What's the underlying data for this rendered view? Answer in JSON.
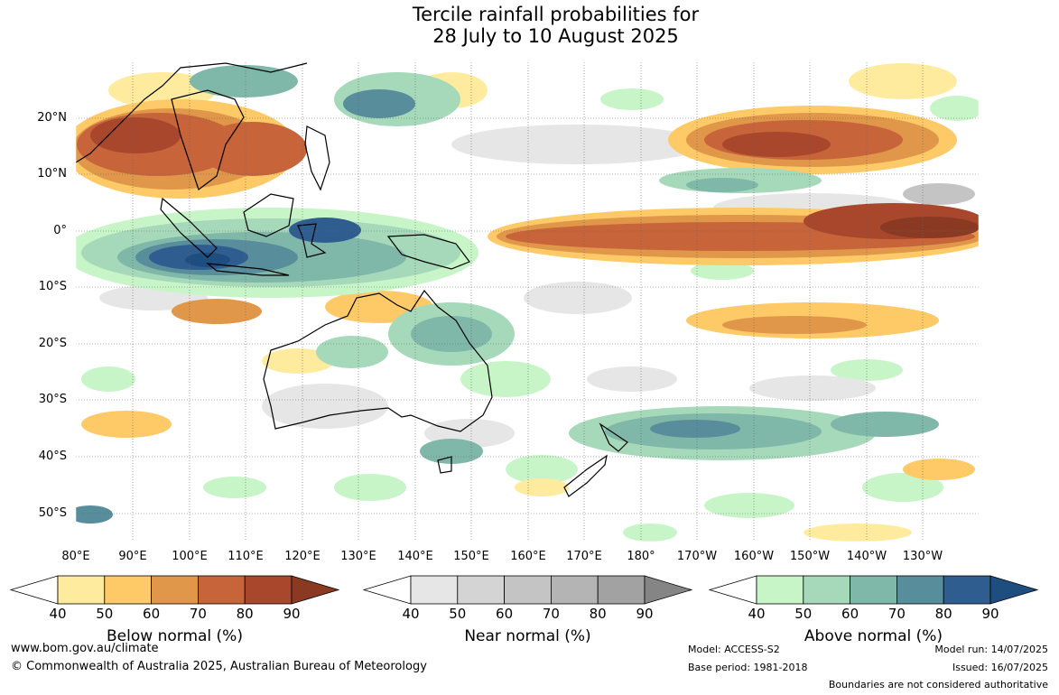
{
  "title": {
    "line1": "Tercile rainfall probabilities for",
    "line2": "28 July to 10 August 2025"
  },
  "latitude_labels": [
    "20°N",
    "10°N",
    "0°",
    "10°S",
    "20°S",
    "30°S",
    "40°S",
    "50°S"
  ],
  "longitude_labels": [
    "80°E",
    "90°E",
    "100°E",
    "110°E",
    "120°E",
    "130°E",
    "140°E",
    "150°E",
    "160°E",
    "170°E",
    "180°",
    "170°W",
    "160°W",
    "150°W",
    "140°W",
    "130°W"
  ],
  "legend": {
    "ticks": [
      "40",
      "50",
      "60",
      "70",
      "80",
      "90"
    ],
    "below": {
      "title": "Below normal (%)",
      "colors": [
        "#ffeb9e",
        "#fdca67",
        "#e09749",
        "#c8643a",
        "#a8472c",
        "#8a3a22"
      ]
    },
    "near": {
      "title": "Near normal (%)",
      "colors": [
        "#e6e6e6",
        "#d4d4d4",
        "#c4c4c4",
        "#b4b4b4",
        "#a2a2a2",
        "#858585"
      ]
    },
    "above": {
      "title": "Above normal (%)",
      "colors": [
        "#c8f5c8",
        "#a5d9b9",
        "#7fb7a9",
        "#588d9b",
        "#305d90",
        "#1e4e7f"
      ]
    }
  },
  "footer": {
    "website": "www.bom.gov.au/climate",
    "copyright": "© Commonwealth of Australia 2025, Australian Bureau of Meteorology",
    "model": "Model: ACCESS-S2",
    "base_period": "Base period: 1981-2018",
    "model_run": "Model run: 14/07/2025",
    "issued": "Issued: 16/07/2025",
    "disclaimer": "Boundaries are not considered authoritative"
  }
}
